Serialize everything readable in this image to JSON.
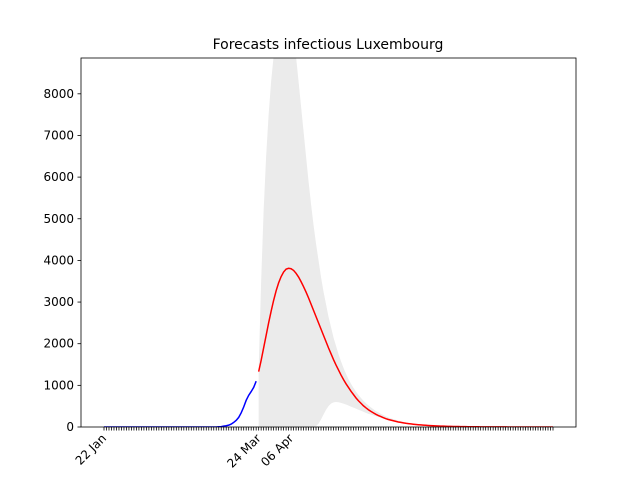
{
  "chart_data": {
    "type": "line",
    "title": "Forecasts infectious Luxembourg",
    "categories": [
      "22 Jan",
      null,
      null,
      null,
      null,
      null,
      null,
      null,
      null,
      null,
      null,
      null,
      null,
      null,
      null,
      null,
      null,
      null,
      null,
      null,
      null,
      null,
      null,
      null,
      null,
      null,
      null,
      null,
      null,
      null,
      null,
      null,
      null,
      null,
      null,
      null,
      null,
      null,
      null,
      null,
      null,
      null,
      null,
      null,
      null,
      null,
      null,
      null,
      null,
      null,
      null,
      null,
      null,
      null,
      null,
      null,
      null,
      null,
      null,
      null,
      null,
      null,
      "24 Mar",
      null,
      null,
      null,
      null,
      null,
      null,
      null,
      null,
      null,
      null,
      null,
      null,
      "06 Apr",
      null,
      null,
      null,
      null,
      null,
      null,
      null,
      null,
      null,
      null,
      null,
      null,
      null,
      null,
      null,
      null,
      null,
      null,
      null,
      null,
      null,
      null,
      null,
      null,
      null,
      null,
      null,
      null,
      null,
      null,
      null,
      null,
      null,
      null,
      null,
      null,
      null,
      null,
      null,
      null,
      null,
      null,
      null,
      null,
      null,
      null,
      null,
      null,
      null,
      null,
      null,
      null,
      null,
      null,
      null,
      null,
      null,
      null,
      null,
      null,
      null,
      null,
      null,
      null,
      null,
      null,
      null,
      null,
      null,
      null,
      null,
      null,
      null,
      null,
      null,
      null,
      null,
      null,
      null,
      null,
      null,
      null,
      null,
      null,
      null,
      null,
      null,
      null,
      null,
      null,
      null,
      null,
      null,
      null,
      null,
      null,
      null,
      null,
      null,
      null,
      null,
      null,
      null,
      null,
      null
    ],
    "series": [
      {
        "color": "#0000ff",
        "values": [
          0,
          0,
          0,
          0,
          0,
          0,
          0,
          0,
          0,
          0,
          0,
          0,
          0,
          0,
          0,
          0,
          0,
          0,
          0,
          0,
          0,
          0,
          0,
          0,
          0,
          0,
          0,
          0,
          0,
          0,
          0,
          0,
          0,
          0,
          0,
          0,
          0,
          0,
          0,
          0,
          0,
          0,
          0,
          0,
          0,
          0,
          5,
          10,
          20,
          30,
          45,
          70,
          110,
          160,
          230,
          340,
          480,
          640,
          760,
          850,
          950,
          1100,
          null,
          null,
          null,
          null,
          null,
          null,
          null,
          null,
          null,
          null,
          null,
          null,
          null,
          null,
          null,
          null,
          null,
          null,
          null,
          null,
          null,
          null,
          null,
          null,
          null,
          null,
          null,
          null,
          null,
          null,
          null,
          null,
          null,
          null,
          null,
          null,
          null,
          null,
          null,
          null,
          null,
          null,
          null,
          null,
          null,
          null,
          null,
          null,
          null,
          null,
          null,
          null,
          null,
          null,
          null,
          null,
          null,
          null,
          null,
          null,
          null,
          null,
          null,
          null,
          null,
          null,
          null,
          null,
          null,
          null,
          null,
          null,
          null,
          null,
          null,
          null,
          null,
          null,
          null,
          null,
          null,
          null,
          null,
          null,
          null,
          null,
          null,
          null,
          null,
          null,
          null,
          null,
          null,
          null,
          null,
          null,
          null,
          null,
          null,
          null,
          null,
          null,
          null,
          null,
          null,
          null,
          null,
          null,
          null,
          null,
          null,
          null,
          null,
          null,
          null,
          null,
          null,
          null,
          null
        ]
      },
      {
        "color": "#ff0000",
        "values": [
          null,
          null,
          null,
          null,
          null,
          null,
          null,
          null,
          null,
          null,
          null,
          null,
          null,
          null,
          null,
          null,
          null,
          null,
          null,
          null,
          null,
          null,
          null,
          null,
          null,
          null,
          null,
          null,
          null,
          null,
          null,
          null,
          null,
          null,
          null,
          null,
          null,
          null,
          null,
          null,
          null,
          null,
          null,
          null,
          null,
          null,
          null,
          null,
          null,
          null,
          null,
          null,
          null,
          null,
          null,
          null,
          null,
          null,
          null,
          null,
          null,
          null,
          1330,
          1600,
          1900,
          2200,
          2500,
          2780,
          3040,
          3270,
          3460,
          3610,
          3720,
          3790,
          3810,
          3800,
          3760,
          3690,
          3600,
          3490,
          3370,
          3240,
          3100,
          2950,
          2800,
          2650,
          2500,
          2350,
          2200,
          2050,
          1900,
          1760,
          1620,
          1490,
          1370,
          1250,
          1140,
          1040,
          950,
          860,
          780,
          700,
          630,
          570,
          510,
          460,
          415,
          375,
          340,
          305,
          275,
          250,
          225,
          200,
          180,
          165,
          150,
          135,
          120,
          110,
          100,
          90,
          82,
          74,
          67,
          61,
          55,
          50,
          45,
          41,
          37,
          33,
          30,
          27,
          25,
          22,
          20,
          18,
          16,
          15,
          13,
          12,
          11,
          10,
          9,
          8,
          7,
          7,
          6,
          5,
          5,
          4,
          4,
          4,
          3,
          3,
          3,
          2,
          2,
          2,
          2,
          2,
          1,
          1,
          1,
          1,
          1,
          1,
          1,
          1,
          1,
          1,
          1,
          1,
          1,
          1,
          1,
          1,
          1,
          1,
          1
        ]
      }
    ],
    "band": {
      "color": "#ebebeb",
      "upper": [
        null,
        null,
        null,
        null,
        null,
        null,
        null,
        null,
        null,
        null,
        null,
        null,
        null,
        null,
        null,
        null,
        null,
        null,
        null,
        null,
        null,
        null,
        null,
        null,
        null,
        null,
        null,
        null,
        null,
        null,
        null,
        null,
        null,
        null,
        null,
        null,
        null,
        null,
        null,
        null,
        null,
        null,
        null,
        null,
        null,
        null,
        null,
        null,
        null,
        null,
        null,
        null,
        null,
        null,
        null,
        null,
        null,
        null,
        null,
        null,
        null,
        null,
        1400,
        3500,
        5200,
        6500,
        7500,
        8300,
        8900,
        9200,
        9500,
        9700,
        9700,
        9600,
        9400,
        9200,
        9000,
        8880,
        8300,
        7700,
        7100,
        6500,
        5900,
        5350,
        4850,
        4400,
        4000,
        3600,
        3250,
        2950,
        2650,
        2400,
        2150,
        1950,
        1750,
        1580,
        1420,
        1280,
        1150,
        1040,
        940,
        850,
        770,
        700,
        630,
        570,
        520,
        470,
        425,
        385,
        350,
        315,
        285,
        255,
        230,
        208,
        188,
        170,
        152,
        138,
        125,
        90,
        82,
        74,
        67,
        61,
        55,
        50,
        45,
        41,
        37,
        33,
        30,
        27,
        25,
        22,
        20,
        18,
        16,
        15,
        13,
        12,
        11,
        10,
        9,
        8,
        7,
        7,
        6,
        5,
        5,
        4,
        4,
        4,
        3,
        3,
        3,
        2,
        2,
        2,
        2,
        2,
        1,
        1,
        1,
        1,
        1,
        1,
        1,
        1,
        1,
        1,
        1,
        1,
        1,
        1,
        1,
        1,
        1,
        1,
        1
      ],
      "lower": [
        null,
        null,
        null,
        null,
        null,
        null,
        null,
        null,
        null,
        null,
        null,
        null,
        null,
        null,
        null,
        null,
        null,
        null,
        null,
        null,
        null,
        null,
        null,
        null,
        null,
        null,
        null,
        null,
        null,
        null,
        null,
        null,
        null,
        null,
        null,
        null,
        null,
        null,
        null,
        null,
        null,
        null,
        null,
        null,
        null,
        null,
        null,
        null,
        null,
        null,
        null,
        null,
        null,
        null,
        null,
        null,
        null,
        null,
        null,
        null,
        null,
        null,
        0,
        0,
        0,
        0,
        0,
        0,
        0,
        0,
        0,
        0,
        0,
        0,
        0,
        0,
        0,
        0,
        0,
        0,
        0,
        0,
        0,
        0,
        0,
        20,
        80,
        180,
        300,
        410,
        500,
        560,
        590,
        600,
        595,
        580,
        560,
        540,
        515,
        490,
        465,
        440,
        415,
        390,
        365,
        340,
        315,
        300,
        280,
        260,
        240,
        222,
        204,
        186,
        170,
        156,
        142,
        128,
        115,
        105,
        95,
        90,
        82,
        74,
        67,
        61,
        55,
        50,
        45,
        41,
        37,
        33,
        30,
        27,
        25,
        22,
        20,
        18,
        16,
        15,
        13,
        12,
        11,
        10,
        9,
        8,
        7,
        7,
        6,
        5,
        5,
        4,
        4,
        4,
        3,
        3,
        3,
        2,
        2,
        2,
        2,
        2,
        1,
        1,
        1,
        1,
        1,
        1,
        1,
        1,
        1,
        1,
        1,
        1,
        1,
        1,
        1,
        1,
        1,
        1,
        1
      ]
    },
    "ylim": [
      0,
      8860
    ],
    "yticks": [
      0,
      1000,
      2000,
      3000,
      4000,
      5000,
      6000,
      7000,
      8000
    ]
  }
}
